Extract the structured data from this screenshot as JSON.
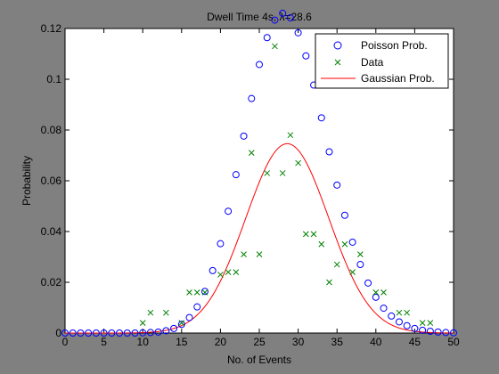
{
  "figure": {
    "background_color": "#808080",
    "axes_color": "#ffffff"
  },
  "chart_data": {
    "type": "scatter",
    "title": "Dwell Time 4s, λ=28.6",
    "xlabel": "No. of Events",
    "ylabel": "Probability",
    "xlim": [
      0,
      50
    ],
    "ylim": [
      0,
      0.12
    ],
    "xticks": [
      0,
      5,
      10,
      15,
      20,
      25,
      30,
      35,
      40,
      45,
      50
    ],
    "yticks": [
      0,
      0.02,
      0.04,
      0.06,
      0.08,
      0.1,
      0.12
    ],
    "ytick_labels": [
      "0",
      "0.02",
      "0.04",
      "0.06",
      "0.08",
      "0.1",
      "0.12"
    ],
    "legend_position": "top-right",
    "series": [
      {
        "name": "Poisson Prob.",
        "style": "circle",
        "color": "#0000ff",
        "x": [
          0,
          1,
          2,
          3,
          4,
          5,
          6,
          7,
          8,
          9,
          10,
          11,
          12,
          13,
          14,
          15,
          16,
          17,
          18,
          19,
          20,
          21,
          22,
          23,
          24,
          25,
          26,
          27,
          28,
          29,
          30,
          31,
          32,
          33,
          34,
          35,
          36,
          37,
          38,
          39,
          40,
          41,
          42,
          43,
          44,
          45,
          46,
          47,
          48,
          49,
          50
        ],
        "y": [
          0.0,
          0.0,
          0.0,
          0.0,
          0.0,
          0.0,
          0.0,
          0.0,
          0.0,
          0.0,
          0.0001,
          0.0002,
          0.0004,
          0.0009,
          0.0018,
          0.0034,
          0.0061,
          0.0103,
          0.0164,
          0.0246,
          0.0352,
          0.048,
          0.0624,
          0.0776,
          0.0924,
          0.1058,
          0.1164,
          0.1233,
          0.126,
          0.1242,
          0.1183,
          0.1092,
          0.0977,
          0.0848,
          0.0714,
          0.0583,
          0.0464,
          0.0358,
          0.027,
          0.0197,
          0.0141,
          0.0098,
          0.0067,
          0.0044,
          0.0029,
          0.0018,
          0.0011,
          0.0007,
          0.0004,
          0.0002,
          0.0001
        ]
      },
      {
        "name": "Data",
        "style": "x",
        "color": "#008000",
        "x": [
          10,
          11,
          13,
          15,
          16,
          17,
          18,
          20,
          21,
          22,
          23,
          24,
          25,
          26,
          27,
          28,
          29,
          30,
          31,
          32,
          33,
          34,
          35,
          36,
          37,
          38,
          40,
          41,
          43,
          44,
          46,
          47
        ],
        "y": [
          0.004,
          0.008,
          0.008,
          0.004,
          0.016,
          0.016,
          0.016,
          0.023,
          0.024,
          0.024,
          0.031,
          0.071,
          0.031,
          0.063,
          0.113,
          0.063,
          0.078,
          0.067,
          0.039,
          0.039,
          0.035,
          0.02,
          0.027,
          0.035,
          0.024,
          0.031,
          0.016,
          0.016,
          0.008,
          0.008,
          0.004,
          0.004
        ]
      },
      {
        "name": "Gaussian Prob.",
        "style": "line",
        "color": "#ff0000",
        "mean": 28.6,
        "variance": 28.6
      }
    ]
  }
}
